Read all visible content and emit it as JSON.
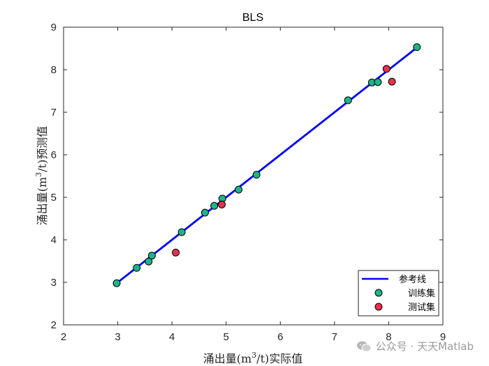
{
  "chart_data": {
    "type": "scatter",
    "title": "BLS",
    "xlabel_main": "涌出量(m",
    "xlabel_sup": "3",
    "xlabel_tail": "/t)实际值",
    "ylabel_main": "涌出量(m",
    "ylabel_sup": "3",
    "ylabel_tail": "/t)预测值",
    "xlim": [
      2,
      9
    ],
    "ylim": [
      2,
      9
    ],
    "xticks": [
      "2",
      "3",
      "4",
      "5",
      "6",
      "7",
      "8",
      "9"
    ],
    "yticks": [
      "2",
      "3",
      "4",
      "5",
      "6",
      "7",
      "8",
      "9"
    ],
    "grid": false,
    "legend_position": "bottom-right",
    "reference_line": {
      "name": "参考线",
      "color": "#0000ff",
      "x": [
        2.98,
        8.52
      ],
      "y": [
        2.98,
        8.52
      ]
    },
    "series": [
      {
        "name": "训练集",
        "color": "#1fb38a",
        "points": [
          [
            2.98,
            2.98
          ],
          [
            3.35,
            3.34
          ],
          [
            3.57,
            3.49
          ],
          [
            3.63,
            3.63
          ],
          [
            4.18,
            4.18
          ],
          [
            4.61,
            4.64
          ],
          [
            4.78,
            4.8
          ],
          [
            4.93,
            4.97
          ],
          [
            5.23,
            5.18
          ],
          [
            5.56,
            5.53
          ],
          [
            7.25,
            7.28
          ],
          [
            7.69,
            7.7
          ],
          [
            7.8,
            7.71
          ],
          [
            8.52,
            8.53
          ]
        ]
      },
      {
        "name": "测试集",
        "color": "#e8304f",
        "points": [
          [
            4.07,
            3.7
          ],
          [
            4.92,
            4.83
          ],
          [
            7.96,
            8.02
          ],
          [
            8.06,
            7.72
          ]
        ]
      }
    ]
  },
  "watermark": {
    "text": "公众号 · 天天Matlab",
    "icon": "wechat-icon"
  }
}
